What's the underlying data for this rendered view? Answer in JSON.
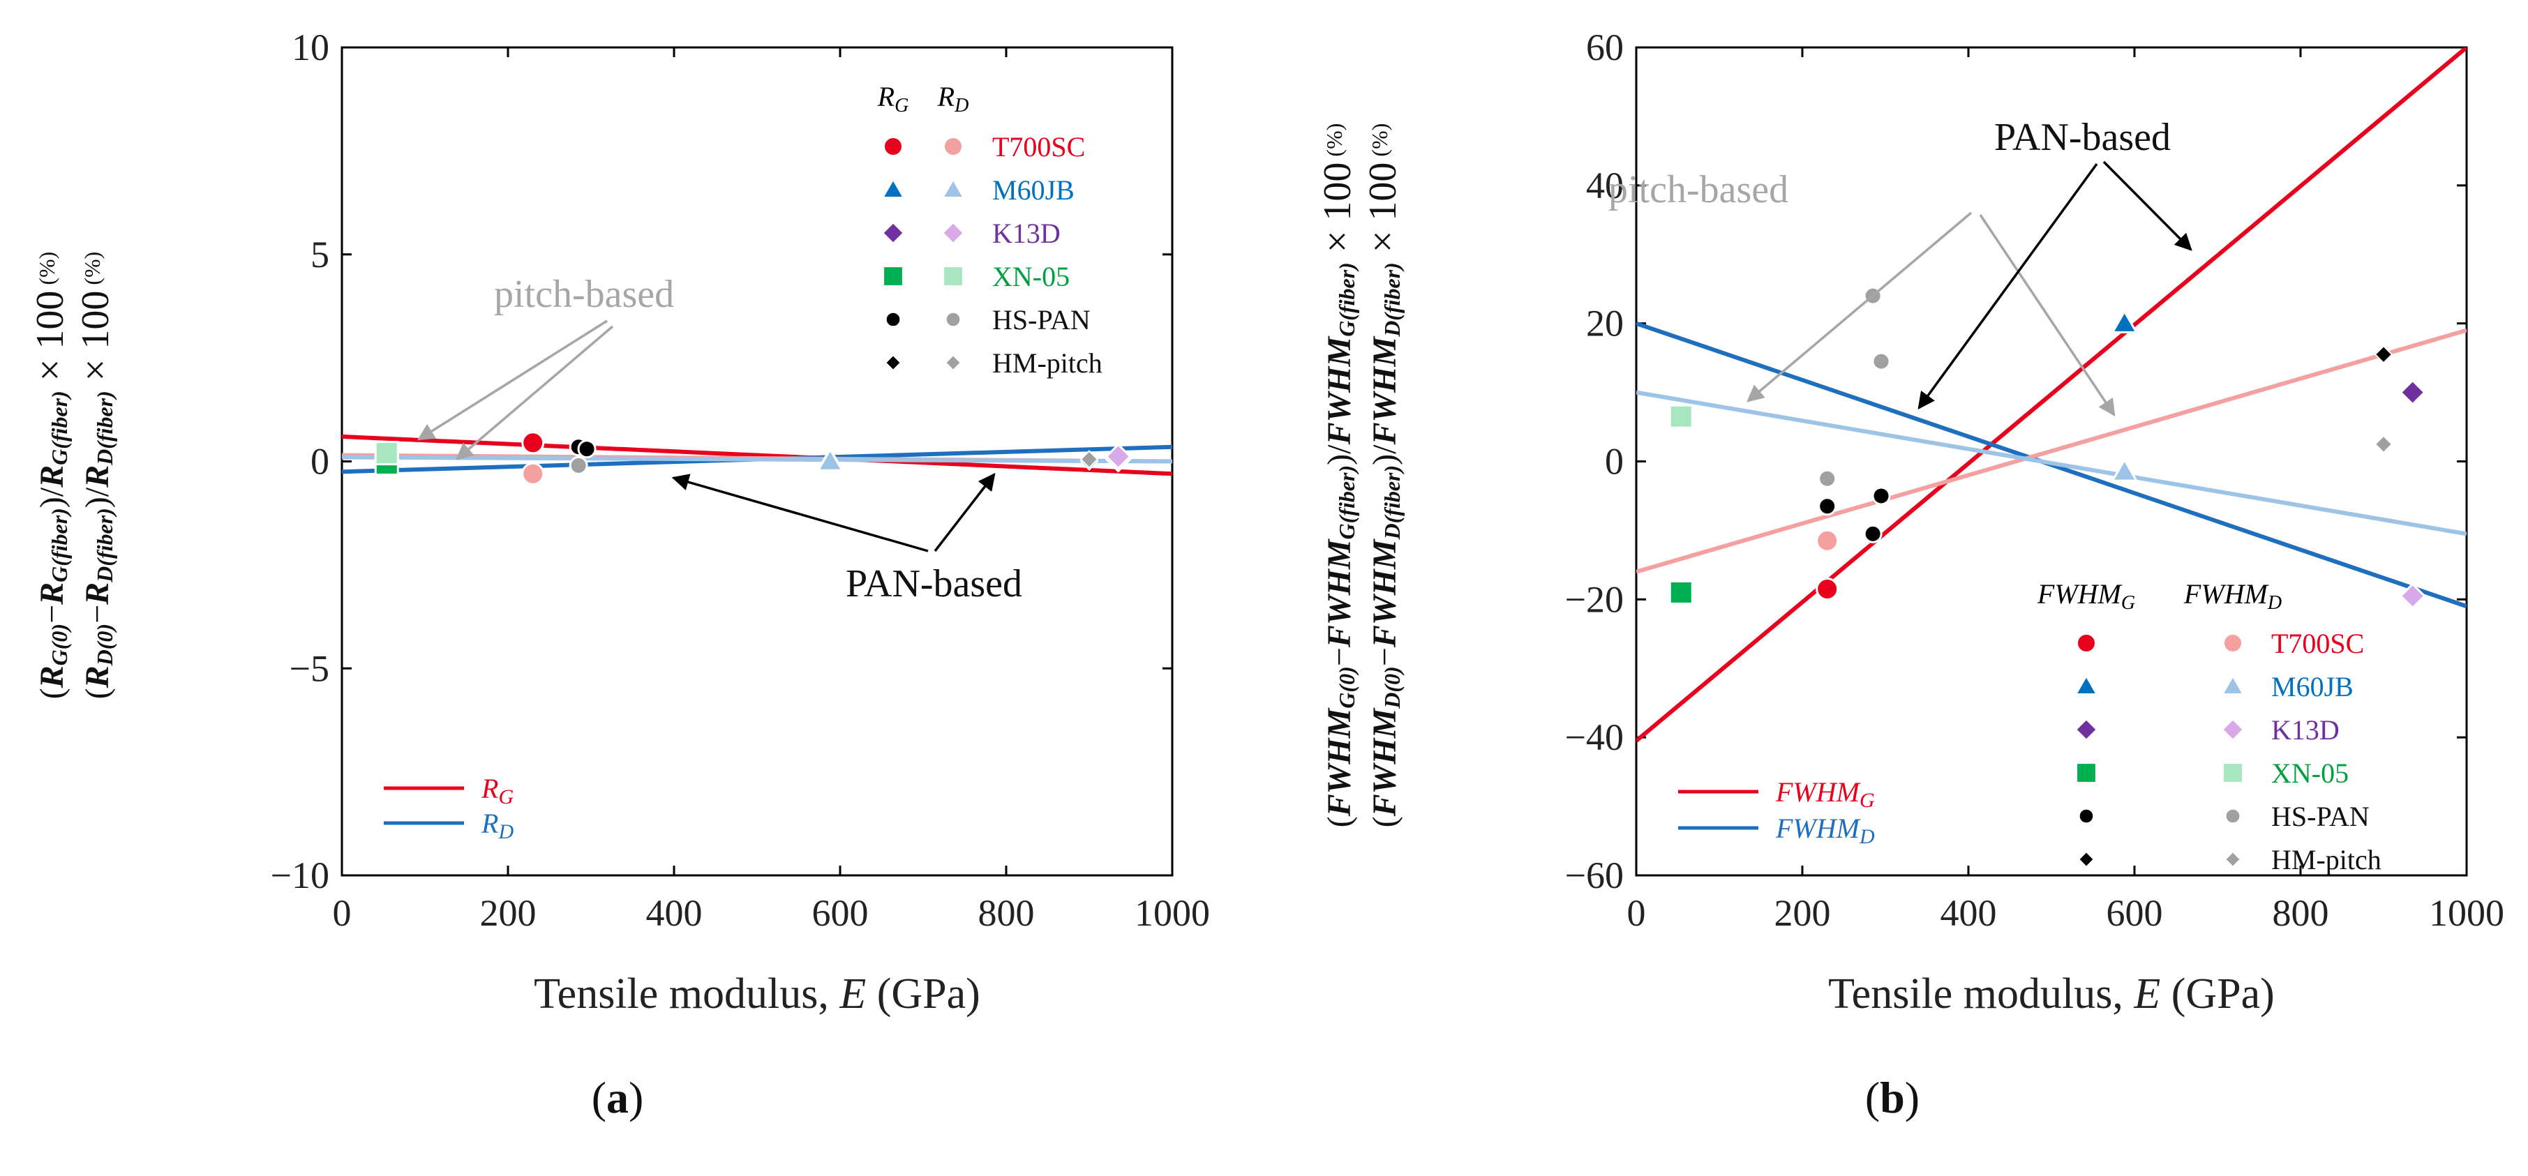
{
  "chart_data": [
    {
      "type": "scatter",
      "panel_label": "(a)",
      "panel_letter": "a",
      "xlabel": "Tensile modulus, E (GPa)",
      "xlabel_prefix": "Tensile modulus, ",
      "xlabel_var": "E",
      "xlabel_suffix": " (GPa)",
      "ylabel_line1": "(R_G(0) − R_G(fiber)) / R_G(fiber) × 100 (%)",
      "ylabel_line2": "(R_D(0) − R_D(fiber)) / R_D(fiber) × 100 (%)",
      "xlim": [
        0,
        1000
      ],
      "ylim": [
        -10,
        10
      ],
      "xticks": [
        0,
        200,
        400,
        600,
        800,
        1000
      ],
      "yticks": [
        -10,
        -5,
        0,
        5,
        10
      ],
      "ytick_labels": [
        "−10",
        "−5",
        "0",
        "5",
        "10"
      ],
      "legend_header": [
        "RG",
        "RD"
      ],
      "legend_markers": [
        {
          "name": "T700SC",
          "color": "#e8001c",
          "light": "#f5a0a0",
          "marker": "circle"
        },
        {
          "name": "M60JB",
          "color": "#0070c0",
          "light": "#9dc3e6",
          "marker": "triangle"
        },
        {
          "name": "K13D",
          "color": "#7030a0",
          "light": "#d8a8e8",
          "marker": "diamond"
        },
        {
          "name": "XN-05",
          "color": "#00b050",
          "light": "#a8e6c0",
          "marker": "square"
        },
        {
          "name": "HS-PAN",
          "color": "#000000",
          "light": "#a0a0a0",
          "marker": "circle-small"
        },
        {
          "name": "HM-pitch",
          "color": "#000000",
          "light": "#a0a0a0",
          "marker": "diamond-small"
        }
      ],
      "line_legend": [
        {
          "name": "RG",
          "color": "#e8001c"
        },
        {
          "name": "RD",
          "color": "#1f6fbf"
        }
      ],
      "annotations": {
        "pitch": "pitch-based",
        "pan": "PAN-based"
      },
      "lines": [
        {
          "name": "RG",
          "color": "#e8001c",
          "x": [
            0,
            1000
          ],
          "y": [
            0.6,
            -0.3
          ],
          "width": 6
        },
        {
          "name": "RD",
          "color": "#1f6fbf",
          "x": [
            0,
            1000
          ],
          "y": [
            -0.25,
            0.35
          ],
          "width": 6
        },
        {
          "name": "RG pitch fit",
          "color": "#f5a0a0",
          "x": [
            0,
            1000
          ],
          "y": [
            0.15,
            0.0
          ],
          "width": 6
        },
        {
          "name": "RD pitch fit",
          "color": "#9dc3e6",
          "x": [
            0,
            1000
          ],
          "y": [
            0.1,
            0.0
          ],
          "width": 6
        }
      ],
      "points": [
        {
          "series": "T700SC RG",
          "x": 230,
          "y": 0.45,
          "marker": "circle",
          "color": "#e8001c"
        },
        {
          "series": "T700SC RD",
          "x": 230,
          "y": -0.3,
          "marker": "circle",
          "color": "#f5a0a0"
        },
        {
          "series": "M60JB RG",
          "x": 588,
          "y": 0.02,
          "marker": "triangle",
          "color": "#0070c0"
        },
        {
          "series": "M60JB RD",
          "x": 588,
          "y": 0.0,
          "marker": "triangle",
          "color": "#9dc3e6"
        },
        {
          "series": "K13D RG",
          "x": 935,
          "y": 0.05,
          "marker": "diamond",
          "color": "#7030a0"
        },
        {
          "series": "K13D RD",
          "x": 935,
          "y": 0.12,
          "marker": "diamond",
          "color": "#d8a8e8"
        },
        {
          "series": "XN-05 RG",
          "x": 54,
          "y": -0.05,
          "marker": "square",
          "color": "#00b050"
        },
        {
          "series": "XN-05 RD",
          "x": 54,
          "y": 0.2,
          "marker": "square",
          "color": "#a8e6c0"
        },
        {
          "series": "HS-PAN RG",
          "x": 285,
          "y": 0.35,
          "marker": "circle-small",
          "color": "#000000"
        },
        {
          "series": "HS-PAN RG",
          "x": 295,
          "y": 0.3,
          "marker": "circle-small",
          "color": "#000000"
        },
        {
          "series": "HS-PAN RD",
          "x": 285,
          "y": -0.1,
          "marker": "circle-small",
          "color": "#a0a0a0"
        },
        {
          "series": "HM-pitch RG",
          "x": 900,
          "y": 0.0,
          "marker": "diamond-small",
          "color": "#000000"
        },
        {
          "series": "HM-pitch RD",
          "x": 900,
          "y": 0.05,
          "marker": "diamond-small",
          "color": "#a0a0a0"
        }
      ]
    },
    {
      "type": "scatter",
      "panel_label": "(b)",
      "panel_letter": "b",
      "xlabel": "Tensile modulus, E (GPa)",
      "xlabel_prefix": "Tensile modulus, ",
      "xlabel_var": "E",
      "xlabel_suffix": " (GPa)",
      "ylabel_line1": "(FWHM_G(0) − FWHM_G(fiber)) / FWHM_G(fiber) × 100 (%)",
      "ylabel_line2": "(FWHM_D(0) − FWHM_D(fiber)) / FWHM_D(fiber) × 100 (%)",
      "xlim": [
        0,
        1000
      ],
      "ylim": [
        -60,
        60
      ],
      "xticks": [
        0,
        200,
        400,
        600,
        800,
        1000
      ],
      "yticks": [
        -60,
        -40,
        -20,
        0,
        20,
        40,
        60
      ],
      "ytick_labels": [
        "−60",
        "−40",
        "−20",
        "0",
        "20",
        "40",
        "60"
      ],
      "legend_header": [
        "FWHMG",
        "FWHMD"
      ],
      "legend_markers": [
        {
          "name": "T700SC",
          "color": "#e8001c",
          "light": "#f5a0a0",
          "marker": "circle"
        },
        {
          "name": "M60JB",
          "color": "#0070c0",
          "light": "#9dc3e6",
          "marker": "triangle"
        },
        {
          "name": "K13D",
          "color": "#7030a0",
          "light": "#d8a8e8",
          "marker": "diamond"
        },
        {
          "name": "XN-05",
          "color": "#00b050",
          "light": "#a8e6c0",
          "marker": "square"
        },
        {
          "name": "HS-PAN",
          "color": "#000000",
          "light": "#a0a0a0",
          "marker": "circle-small"
        },
        {
          "name": "HM-pitch",
          "color": "#000000",
          "light": "#a0a0a0",
          "marker": "diamond-small"
        }
      ],
      "line_legend": [
        {
          "name": "FWHMG",
          "color": "#e8001c"
        },
        {
          "name": "FWHMD",
          "color": "#1f6fbf"
        }
      ],
      "annotations": {
        "pitch": "pitch-based",
        "pan": "PAN-based"
      },
      "lines": [
        {
          "name": "FWHMG PAN fit",
          "color": "#e8001c",
          "x": [
            0,
            1000
          ],
          "y": [
            -40.5,
            60
          ],
          "width": 6
        },
        {
          "name": "FWHMD PAN fit",
          "color": "#1f6fbf",
          "x": [
            0,
            1000
          ],
          "y": [
            20,
            -21
          ],
          "width": 6
        },
        {
          "name": "FWHMG pitch fit",
          "color": "#f5a0a0",
          "x": [
            0,
            1000
          ],
          "y": [
            -16,
            19
          ],
          "width": 6
        },
        {
          "name": "FWHMD pitch fit",
          "color": "#9dc3e6",
          "x": [
            0,
            1000
          ],
          "y": [
            10,
            -10.5
          ],
          "width": 6
        }
      ],
      "points": [
        {
          "series": "T700SC FWHMG",
          "x": 230,
          "y": -18.5,
          "marker": "circle",
          "color": "#e8001c"
        },
        {
          "series": "T700SC FWHMD",
          "x": 230,
          "y": -11.5,
          "marker": "circle",
          "color": "#f5a0a0"
        },
        {
          "series": "M60JB FWHMG",
          "x": 588,
          "y": 20,
          "marker": "triangle",
          "color": "#0070c0"
        },
        {
          "series": "M60JB FWHMD",
          "x": 588,
          "y": -1.5,
          "marker": "triangle",
          "color": "#9dc3e6"
        },
        {
          "series": "K13D FWHMG",
          "x": 935,
          "y": 10,
          "marker": "diamond",
          "color": "#7030a0"
        },
        {
          "series": "K13D FWHMD",
          "x": 935,
          "y": -19.5,
          "marker": "diamond",
          "color": "#d8a8e8"
        },
        {
          "series": "XN-05 FWHMG",
          "x": 54,
          "y": -19,
          "marker": "square",
          "color": "#00b050"
        },
        {
          "series": "XN-05 FWHMD",
          "x": 54,
          "y": 6.5,
          "marker": "square",
          "color": "#a8e6c0"
        },
        {
          "series": "HS-PAN FWHMG",
          "x": 230,
          "y": -6.5,
          "marker": "circle-small",
          "color": "#000000"
        },
        {
          "series": "HS-PAN FWHMG",
          "x": 285,
          "y": -10.5,
          "marker": "circle-small",
          "color": "#000000"
        },
        {
          "series": "HS-PAN FWHMG",
          "x": 295,
          "y": -5,
          "marker": "circle-small",
          "color": "#000000"
        },
        {
          "series": "HS-PAN FWHMD",
          "x": 230,
          "y": -2.5,
          "marker": "circle-small",
          "color": "#a0a0a0"
        },
        {
          "series": "HS-PAN FWHMD",
          "x": 285,
          "y": 24,
          "marker": "circle-small",
          "color": "#a0a0a0"
        },
        {
          "series": "HS-PAN FWHMD",
          "x": 295,
          "y": 14.5,
          "marker": "circle-small",
          "color": "#a0a0a0"
        },
        {
          "series": "HM-pitch FWHMG",
          "x": 900,
          "y": 15.5,
          "marker": "diamond-small",
          "color": "#000000"
        },
        {
          "series": "HM-pitch FWHMD",
          "x": 900,
          "y": 2.5,
          "marker": "diamond-small",
          "color": "#a0a0a0"
        }
      ]
    }
  ]
}
